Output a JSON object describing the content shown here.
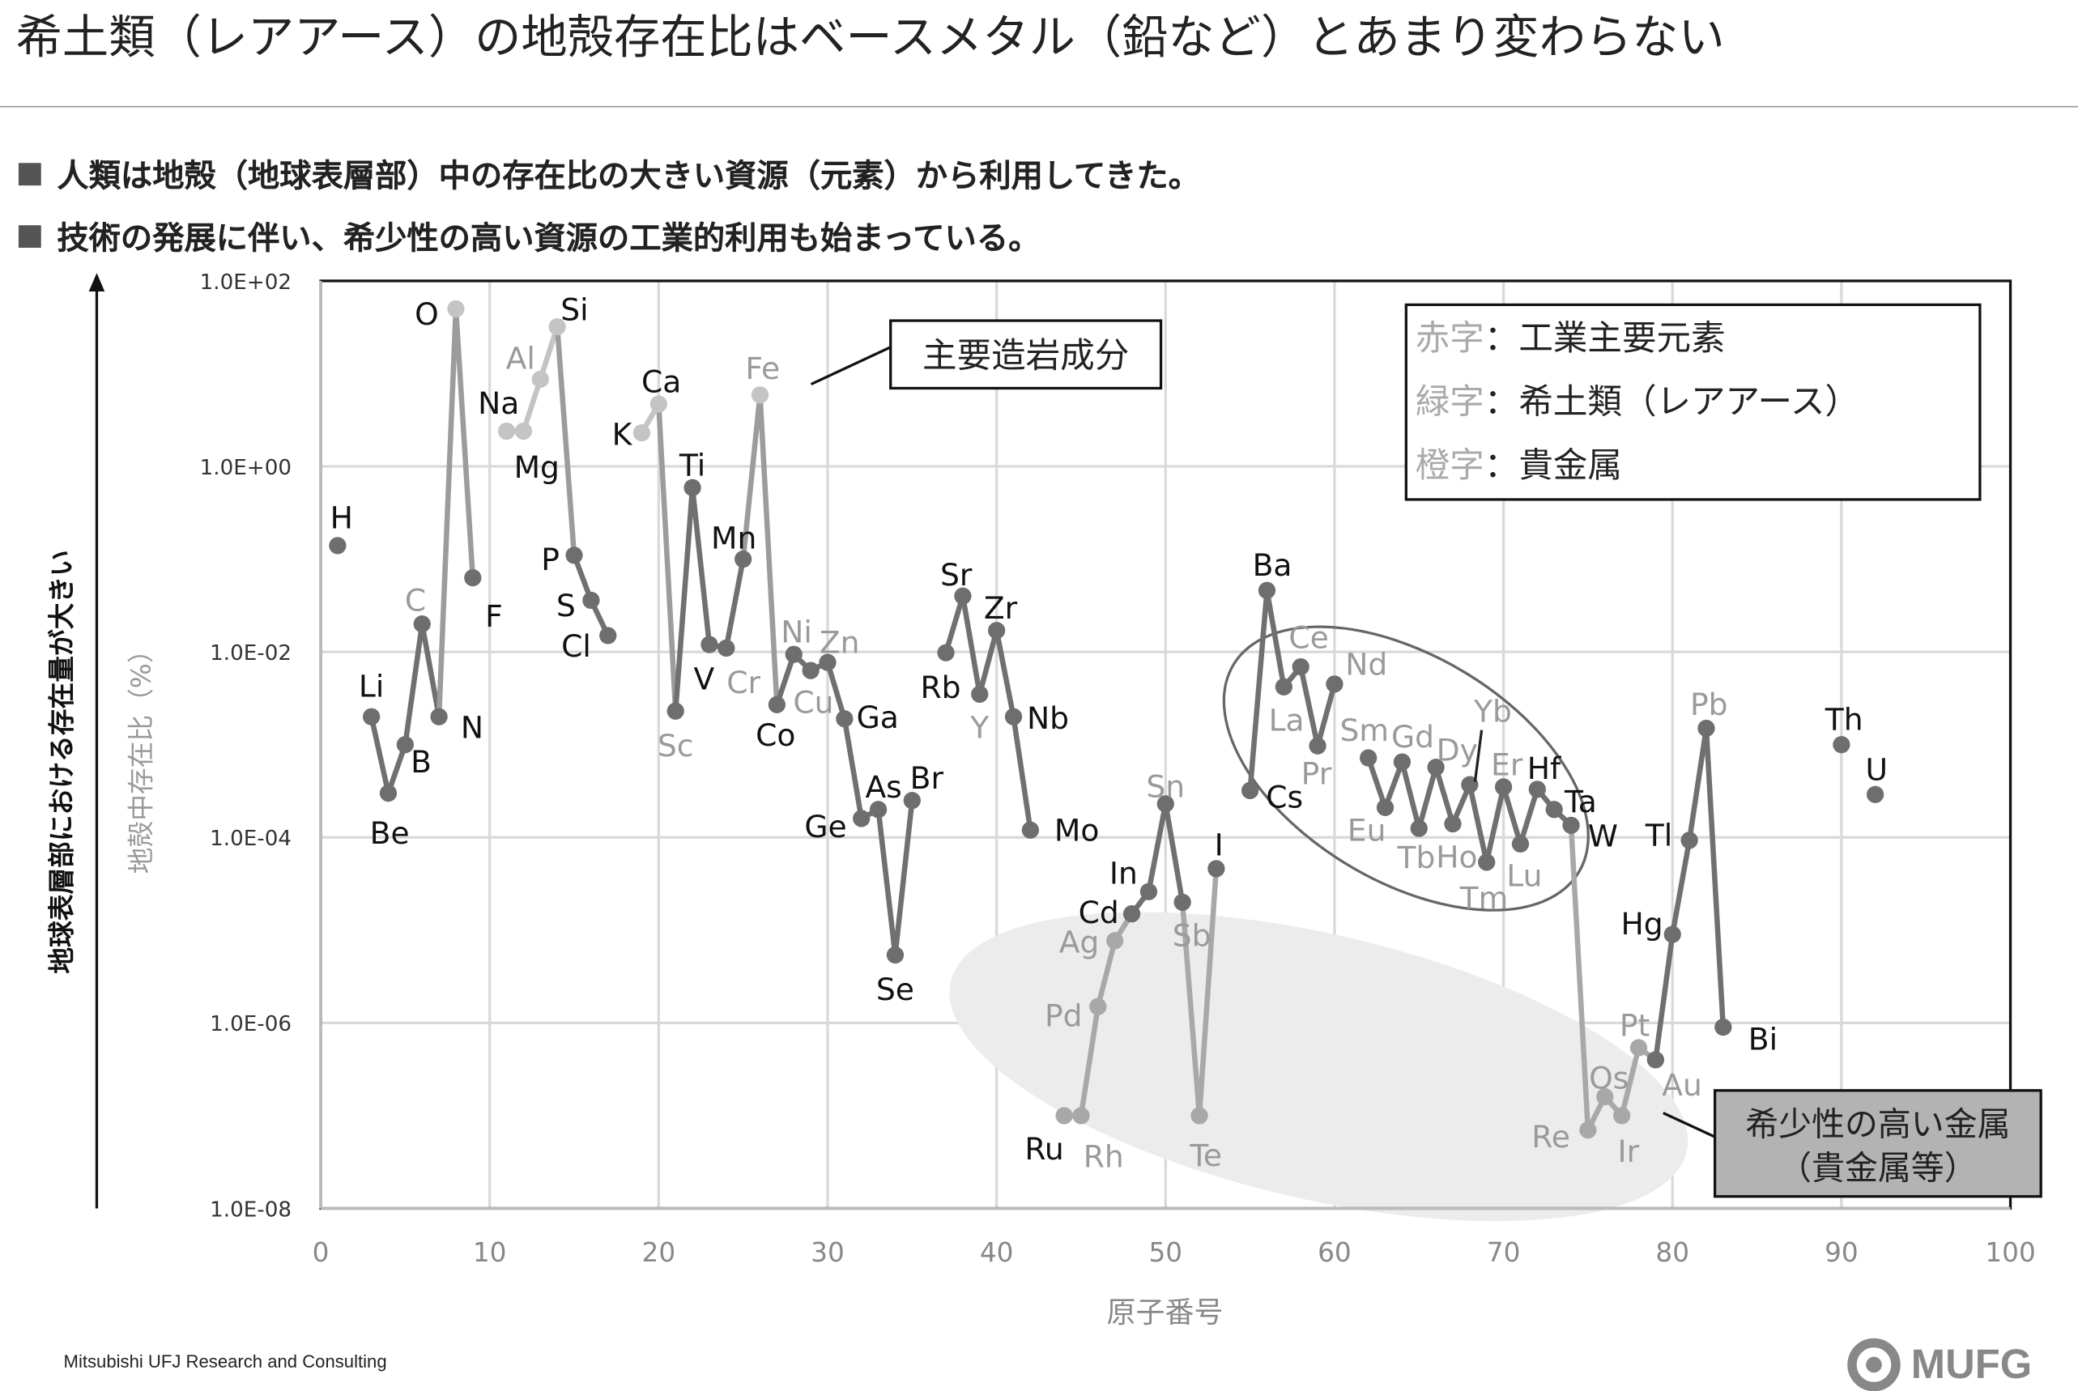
{
  "title": "希土類（レアアース）の地殻存在比はベースメタル（鉛など）とあまり変わらない",
  "bullets": [
    "人類は地殻（地球表層部）中の存在比の大きい資源（元素）から利用してきた。",
    "技術の発展に伴い、希少性の高い資源の工業的利用も始まっている。"
  ],
  "footer": "Mitsubishi UFJ Research and Consulting",
  "logo": "MUFG",
  "colors": {
    "line_dark": "#707070",
    "line_major": "#c4c4c4",
    "line_precious": "#a8a8a8",
    "label_black": "#111111",
    "label_gray": "#9a9a9a",
    "grid": "#d9d9d9"
  },
  "chart_data": {
    "type": "line",
    "xlabel": "原子番号",
    "ylabel": "地殻中存在比（%）",
    "ylabel_outer": "地球表層部における存在量が大きい",
    "xlim": [
      0,
      100
    ],
    "ylim": [
      1e-08,
      100
    ],
    "yscale": "log",
    "grid": true,
    "xticks": [
      "0",
      "10",
      "20",
      "30",
      "40",
      "50",
      "60",
      "70",
      "80",
      "90",
      "100"
    ],
    "yticks": [
      "1.0E+02",
      "1.0E+00",
      "1.0E-02",
      "1.0E-04",
      "1.0E-06",
      "1.0E-08"
    ],
    "legend": [
      "赤字：工業主要元素",
      "緑字：希土類（レアアース）",
      "橙字：貴金属"
    ],
    "annotations": {
      "major_rock": "主要造岩成分",
      "rare_metal_1": "希少性の高い金属",
      "rare_metal_2": "（貴金属等）"
    },
    "segments": [
      [
        1,
        1
      ],
      [
        3,
        9
      ],
      [
        11,
        17
      ],
      [
        19,
        35
      ],
      [
        37,
        42
      ],
      [
        44,
        53
      ],
      [
        55,
        60
      ],
      [
        62,
        83
      ],
      [
        90,
        90
      ],
      [
        92,
        92
      ]
    ],
    "points": [
      {
        "z": 1,
        "sym": "H",
        "v": 0.14,
        "c": "black"
      },
      {
        "z": 3,
        "sym": "Li",
        "v": 0.002,
        "c": "black"
      },
      {
        "z": 4,
        "sym": "Be",
        "v": 0.0003,
        "c": "black"
      },
      {
        "z": 5,
        "sym": "B",
        "v": 0.001,
        "c": "black"
      },
      {
        "z": 6,
        "sym": "C",
        "v": 0.02,
        "c": "gray"
      },
      {
        "z": 7,
        "sym": "N",
        "v": 0.002,
        "c": "black"
      },
      {
        "z": 8,
        "sym": "O",
        "v": 50,
        "c": "black",
        "k": "major"
      },
      {
        "z": 9,
        "sym": "F",
        "v": 0.063,
        "c": "black"
      },
      {
        "z": 11,
        "sym": "Na",
        "v": 2.4,
        "c": "black",
        "k": "major"
      },
      {
        "z": 12,
        "sym": "Mg",
        "v": 2.4,
        "c": "black",
        "k": "major"
      },
      {
        "z": 13,
        "sym": "Al",
        "v": 8.7,
        "c": "gray",
        "k": "major"
      },
      {
        "z": 14,
        "sym": "Si",
        "v": 32,
        "c": "black",
        "k": "major"
      },
      {
        "z": 15,
        "sym": "P",
        "v": 0.11,
        "c": "black"
      },
      {
        "z": 16,
        "sym": "S",
        "v": 0.036,
        "c": "black"
      },
      {
        "z": 17,
        "sym": "Cl",
        "v": 0.015,
        "c": "black"
      },
      {
        "z": 19,
        "sym": "K",
        "v": 2.3,
        "c": "black",
        "k": "major"
      },
      {
        "z": 20,
        "sym": "Ca",
        "v": 4.7,
        "c": "black",
        "k": "major"
      },
      {
        "z": 21,
        "sym": "Sc",
        "v": 0.0023,
        "c": "gray"
      },
      {
        "z": 22,
        "sym": "Ti",
        "v": 0.59,
        "c": "black"
      },
      {
        "z": 23,
        "sym": "V",
        "v": 0.012,
        "c": "black"
      },
      {
        "z": 24,
        "sym": "Cr",
        "v": 0.011,
        "c": "gray"
      },
      {
        "z": 25,
        "sym": "Mn",
        "v": 0.1,
        "c": "black"
      },
      {
        "z": 26,
        "sym": "Fe",
        "v": 5.9,
        "c": "gray",
        "k": "major"
      },
      {
        "z": 27,
        "sym": "Co",
        "v": 0.0027,
        "c": "black"
      },
      {
        "z": 28,
        "sym": "Ni",
        "v": 0.0094,
        "c": "gray"
      },
      {
        "z": 29,
        "sym": "Cu",
        "v": 0.0063,
        "c": "gray"
      },
      {
        "z": 30,
        "sym": "Zn",
        "v": 0.0077,
        "c": "gray"
      },
      {
        "z": 31,
        "sym": "Ga",
        "v": 0.0019,
        "c": "black"
      },
      {
        "z": 32,
        "sym": "Ge",
        "v": 0.00016,
        "c": "black"
      },
      {
        "z": 33,
        "sym": "As",
        "v": 0.0002,
        "c": "black"
      },
      {
        "z": 34,
        "sym": "Se",
        "v": 5.4e-06,
        "c": "black"
      },
      {
        "z": 35,
        "sym": "Br",
        "v": 0.00025,
        "c": "black"
      },
      {
        "z": 37,
        "sym": "Rb",
        "v": 0.0098,
        "c": "black"
      },
      {
        "z": 38,
        "sym": "Sr",
        "v": 0.04,
        "c": "black"
      },
      {
        "z": 39,
        "sym": "Y",
        "v": 0.0035,
        "c": "gray"
      },
      {
        "z": 40,
        "sym": "Zr",
        "v": 0.017,
        "c": "black"
      },
      {
        "z": 41,
        "sym": "Nb",
        "v": 0.002,
        "c": "black"
      },
      {
        "z": 42,
        "sym": "Mo",
        "v": 0.00012,
        "c": "black"
      },
      {
        "z": 44,
        "sym": "Ru",
        "v": 1e-07,
        "c": "black",
        "k": "precious"
      },
      {
        "z": 45,
        "sym": "Rh",
        "v": 1e-07,
        "c": "gray",
        "k": "precious"
      },
      {
        "z": 46,
        "sym": "Pd",
        "v": 1.5e-06,
        "c": "gray",
        "k": "precious"
      },
      {
        "z": 47,
        "sym": "Ag",
        "v": 7.7e-06,
        "c": "gray",
        "k": "precious"
      },
      {
        "z": 48,
        "sym": "Cd",
        "v": 1.5e-05,
        "c": "black"
      },
      {
        "z": 49,
        "sym": "In",
        "v": 2.6e-05,
        "c": "black"
      },
      {
        "z": 50,
        "sym": "Sn",
        "v": 0.00023,
        "c": "gray"
      },
      {
        "z": 51,
        "sym": "Sb",
        "v": 2e-05,
        "c": "gray"
      },
      {
        "z": 52,
        "sym": "Te",
        "v": 1e-07,
        "c": "gray",
        "k": "precious"
      },
      {
        "z": 53,
        "sym": "I",
        "v": 4.6e-05,
        "c": "black"
      },
      {
        "z": 55,
        "sym": "Cs",
        "v": 0.00032,
        "c": "black"
      },
      {
        "z": 56,
        "sym": "Ba",
        "v": 0.046,
        "c": "black"
      },
      {
        "z": 57,
        "sym": "La",
        "v": 0.0042,
        "c": "gray"
      },
      {
        "z": 58,
        "sym": "Ce",
        "v": 0.0069,
        "c": "gray"
      },
      {
        "z": 59,
        "sym": "Pr",
        "v": 0.00097,
        "c": "gray"
      },
      {
        "z": 60,
        "sym": "Nd",
        "v": 0.0045,
        "c": "gray"
      },
      {
        "z": 62,
        "sym": "Sm",
        "v": 0.00072,
        "c": "gray"
      },
      {
        "z": 63,
        "sym": "Eu",
        "v": 0.00021,
        "c": "gray"
      },
      {
        "z": 64,
        "sym": "Gd",
        "v": 0.00065,
        "c": "gray"
      },
      {
        "z": 65,
        "sym": "Tb",
        "v": 0.000125,
        "c": "gray"
      },
      {
        "z": 66,
        "sym": "Dy",
        "v": 0.00057,
        "c": "gray"
      },
      {
        "z": 67,
        "sym": "Ho",
        "v": 0.00014,
        "c": "gray"
      },
      {
        "z": 68,
        "sym": "Er",
        "v": 0.00037,
        "c": "gray"
      },
      {
        "z": 69,
        "sym": "Tm",
        "v": 5.4e-05,
        "c": "gray"
      },
      {
        "z": 70,
        "sym": "Yb",
        "v": 0.00035,
        "c": "gray"
      },
      {
        "z": 71,
        "sym": "Lu",
        "v": 8.5e-05,
        "c": "gray"
      },
      {
        "z": 72,
        "sym": "Hf",
        "v": 0.00033,
        "c": "black"
      },
      {
        "z": 73,
        "sym": "Ta",
        "v": 0.0002,
        "c": "black"
      },
      {
        "z": 74,
        "sym": "W",
        "v": 0.000135,
        "c": "black"
      },
      {
        "z": 75,
        "sym": "Re",
        "v": 7e-08,
        "c": "gray",
        "k": "precious"
      },
      {
        "z": 76,
        "sym": "Os",
        "v": 1.6e-07,
        "c": "gray",
        "k": "precious"
      },
      {
        "z": 77,
        "sym": "Ir",
        "v": 1e-07,
        "c": "gray",
        "k": "precious"
      },
      {
        "z": 78,
        "sym": "Pt",
        "v": 5.4e-07,
        "c": "gray",
        "k": "precious"
      },
      {
        "z": 79,
        "sym": "Au",
        "v": 4e-07,
        "c": "gray"
      },
      {
        "z": 80,
        "sym": "Hg",
        "v": 9e-06,
        "c": "black"
      },
      {
        "z": 81,
        "sym": "Tl",
        "v": 9.3e-05,
        "c": "black"
      },
      {
        "z": 82,
        "sym": "Pb",
        "v": 0.0015,
        "c": "gray"
      },
      {
        "z": 83,
        "sym": "Bi",
        "v": 9e-07,
        "c": "black"
      },
      {
        "z": 90,
        "sym": "Th",
        "v": 0.001,
        "c": "black"
      },
      {
        "z": 92,
        "sym": "U",
        "v": 0.00029,
        "c": "black"
      }
    ]
  }
}
